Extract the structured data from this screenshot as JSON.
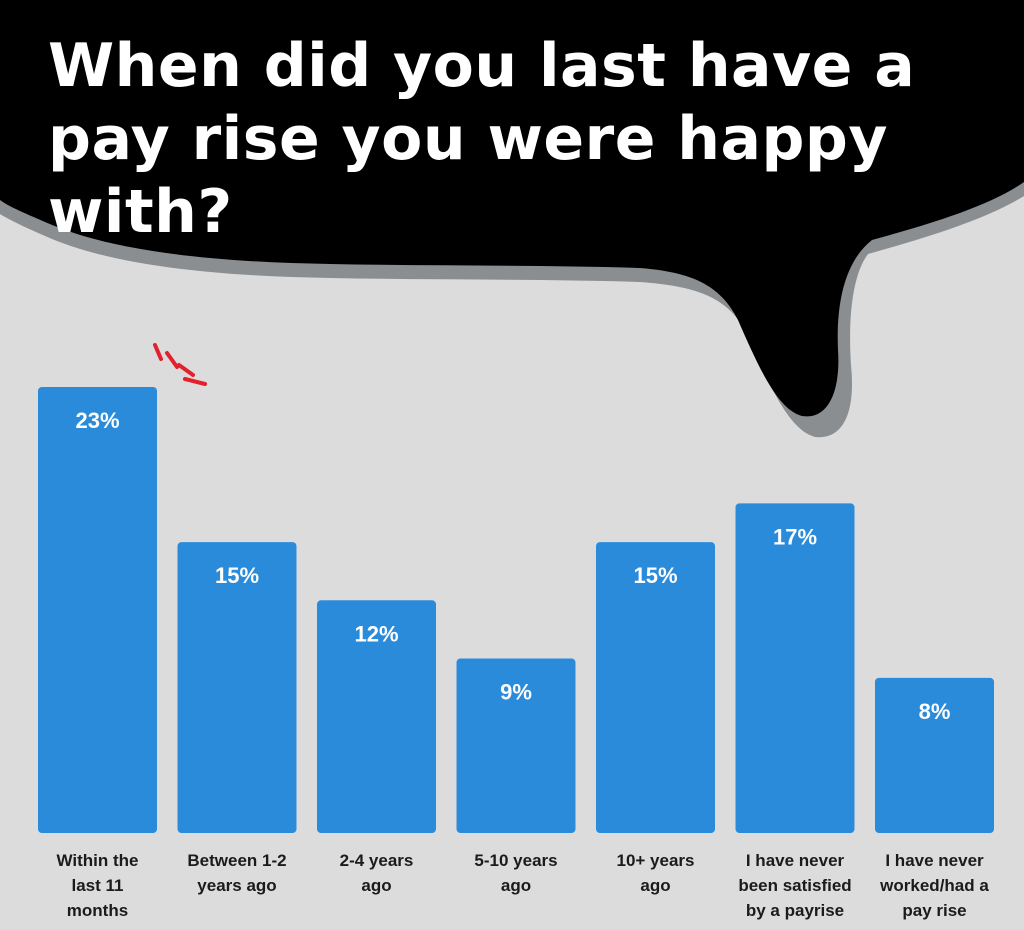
{
  "title": "When did you last have a pay rise you were happy with?",
  "colors": {
    "background": "#dcdcdd",
    "bubble": "#000000",
    "bubble_shadow": "#8a8e91",
    "bar": "#2b8bdb",
    "value_label": "#ffffff",
    "category_label": "#1b1b1b",
    "accent_marks": "#e3202b"
  },
  "chart_data": {
    "type": "bar",
    "title": "When did you last have a pay rise you were happy with?",
    "xlabel": "",
    "ylabel": "",
    "ylim": [
      0,
      23
    ],
    "grid": false,
    "legend": "none",
    "unit": "%",
    "categories": [
      "Within the\nlast 11\nmonths",
      "Between 1-2\nyears ago",
      "2-4 years\nago",
      "5-10 years\nago",
      "10+ years\nago",
      "I have never\nbeen satisfied\nby a payrise",
      "I have never\nworked/had a\npay rise"
    ],
    "values": [
      23,
      15,
      12,
      9,
      15,
      17,
      8
    ],
    "value_labels": [
      "23%",
      "15%",
      "12%",
      "9%",
      "15%",
      "17%",
      "8%"
    ],
    "highlight_index": 0
  }
}
